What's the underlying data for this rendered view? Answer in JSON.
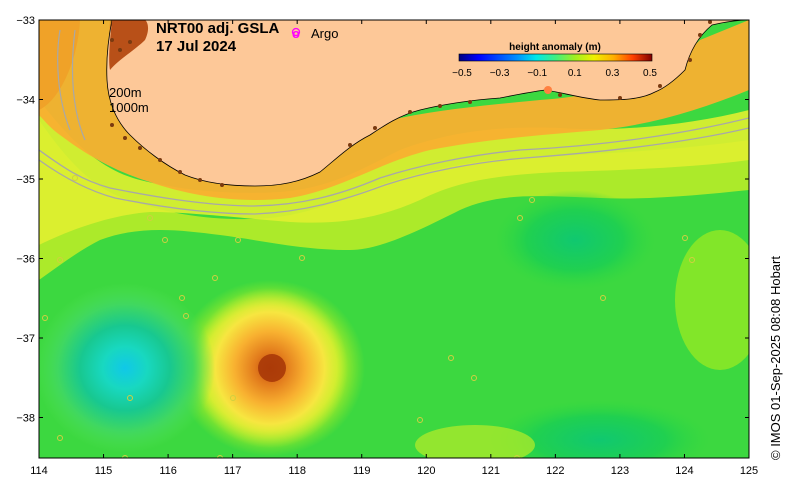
{
  "map": {
    "title_line1": "NRT00 adj. GSLA",
    "title_line2": "17 Jul 2024",
    "legend_argo_marker": "o",
    "legend_argo_label": "Argo",
    "legend_argo_color": "#ff00ff",
    "contour_label_200": "200m",
    "contour_label_1000": "1000m",
    "credit": "© IMOS 01-Sep-2025 08:08 Hobart",
    "land_color": "#fdc898",
    "bathymetry_color": "#a8a8a8",
    "x_ticks": [
      "114",
      "115",
      "116",
      "117",
      "118",
      "119",
      "120",
      "121",
      "122",
      "123",
      "124",
      "125"
    ],
    "y_ticks": [
      "−33",
      "−34",
      "−35",
      "−36",
      "−37",
      "−38"
    ]
  },
  "colorbar": {
    "title": "height anomaly (m)",
    "tick_labels": [
      "−0.5",
      "−0.3",
      "−0.1",
      "0.1",
      "0.3",
      "0.5"
    ],
    "range": [
      -0.5,
      0.5
    ],
    "colors": [
      "#00007f",
      "#0000ff",
      "#0080ff",
      "#00e0ff",
      "#20ff90",
      "#80ff00",
      "#e0ff00",
      "#ffc000",
      "#ff6000",
      "#c00000",
      "#7f0000"
    ]
  },
  "features": [
    {
      "name": "warm-eddy",
      "lon": 117.6,
      "lat": -37.4,
      "anomaly": 0.38
    },
    {
      "name": "cold-eddy",
      "lon": 115.4,
      "lat": -37.4,
      "anomaly": -0.18
    },
    {
      "name": "east-depression",
      "lon": 122.8,
      "lat": -36.0,
      "anomaly": -0.02
    },
    {
      "name": "south-depression",
      "lon": 123.0,
      "lat": -38.2,
      "anomaly": 0.0
    }
  ]
}
